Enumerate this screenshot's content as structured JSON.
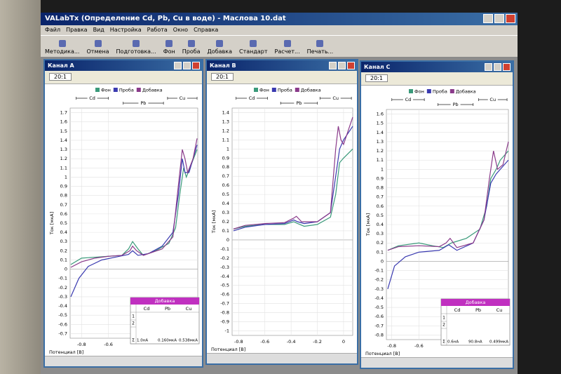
{
  "window": {
    "title": "VALabTx (Определение Cd, Pb, Cu в воде) - Маслова 10.dat"
  },
  "menu": [
    "Файл",
    "Правка",
    "Вид",
    "Настройка",
    "Работа",
    "Окно",
    "Справка"
  ],
  "toolbar": [
    "Методика...",
    "Отмена",
    "Подготовка...",
    "Фон",
    "Проба",
    "Добавка",
    "Стандарт",
    "Расчет...",
    "Печать..."
  ],
  "panels": [
    {
      "title": "Канал A",
      "zoom": "20:1",
      "table": {
        "title": "Добавка",
        "columns": [
          "Cd",
          "Pb",
          "Cu"
        ],
        "rows": [
          "1",
          "2",
          "Σ"
        ],
        "sum": [
          "1.0нА",
          "0.160мкА",
          "0.538мкА"
        ]
      }
    },
    {
      "title": "Канал B",
      "zoom": "20:1"
    },
    {
      "title": "Канал C",
      "zoom": "20:1",
      "table": {
        "title": "Добавка",
        "columns": [
          "Cd",
          "Pb",
          "Cu"
        ],
        "rows": [
          "1",
          "2",
          "Σ"
        ],
        "sum": [
          "0.6нА",
          "90.8нА",
          "0.499мкА"
        ]
      }
    }
  ],
  "chart_data": [
    {
      "type": "line",
      "x_label": "Потенциал [В]",
      "y_label": "Ток [мкА]",
      "grid": true,
      "xlim": [
        -0.885,
        0.065
      ],
      "xticks": [
        -0.8,
        -0.6
      ],
      "ylim": [
        -0.75,
        1.75
      ],
      "yticks": [
        -0.7,
        -0.6,
        -0.5,
        -0.4,
        -0.3,
        -0.2,
        -0.1,
        0,
        0.1,
        0.2,
        0.3,
        0.4,
        0.5,
        0.6,
        0.7,
        0.8,
        0.9,
        1,
        1.1,
        1.2,
        1.3,
        1.4,
        1.5,
        1.6,
        1.7
      ],
      "regions": [
        {
          "label": "Cd",
          "from": -0.84,
          "to": -0.6
        },
        {
          "label": "Pb",
          "from": -0.49,
          "to": -0.19
        },
        {
          "label": "Cu",
          "from": -0.16,
          "to": 0.06
        }
      ],
      "series": [
        {
          "name": "Фон",
          "color": "#3a9a7a",
          "x": [
            -0.88,
            -0.8,
            -0.7,
            -0.6,
            -0.5,
            -0.45,
            -0.42,
            -0.38,
            -0.34,
            -0.25,
            -0.15,
            -0.1,
            -0.07,
            -0.04,
            -0.02,
            0.02,
            0.06
          ],
          "values": [
            0.05,
            0.12,
            0.13,
            0.14,
            0.15,
            0.22,
            0.3,
            0.22,
            0.15,
            0.2,
            0.28,
            0.45,
            0.8,
            1.1,
            1.0,
            1.15,
            1.3
          ]
        },
        {
          "name": "Проба",
          "color": "#3a3ab0",
          "x": [
            -0.88,
            -0.82,
            -0.75,
            -0.65,
            -0.55,
            -0.45,
            -0.42,
            -0.38,
            -0.3,
            -0.2,
            -0.12,
            -0.08,
            -0.05,
            -0.03,
            0.0,
            0.06
          ],
          "values": [
            -0.3,
            -0.1,
            0.03,
            0.1,
            0.13,
            0.16,
            0.2,
            0.15,
            0.17,
            0.25,
            0.4,
            0.8,
            1.2,
            1.05,
            1.05,
            1.35
          ]
        },
        {
          "name": "Добавка",
          "color": "#8a3a8a",
          "x": [
            -0.88,
            -0.8,
            -0.7,
            -0.6,
            -0.5,
            -0.44,
            -0.42,
            -0.39,
            -0.34,
            -0.2,
            -0.12,
            -0.08,
            -0.05,
            -0.03,
            -0.01,
            0.03,
            0.06
          ],
          "values": [
            0.02,
            0.08,
            0.12,
            0.14,
            0.15,
            0.2,
            0.25,
            0.2,
            0.15,
            0.22,
            0.35,
            0.9,
            1.3,
            1.2,
            1.05,
            1.2,
            1.42
          ]
        }
      ]
    },
    {
      "type": "line",
      "x_label": "Потенциал [В]",
      "y_label": "Ток [мкА]",
      "grid": true,
      "xlim": [
        -0.85,
        0.07
      ],
      "xticks": [
        -0.8,
        -0.6,
        -0.4,
        -0.2,
        0
      ],
      "ylim": [
        -1.05,
        1.45
      ],
      "yticks": [
        -1,
        -0.9,
        -0.8,
        -0.7,
        -0.6,
        -0.5,
        -0.4,
        -0.3,
        -0.2,
        -0.1,
        0,
        0.1,
        0.2,
        0.3,
        0.4,
        0.5,
        0.6,
        0.7,
        0.8,
        0.9,
        1,
        1.1,
        1.2,
        1.3,
        1.4
      ],
      "regions": [
        {
          "label": "Cd",
          "from": -0.82,
          "to": -0.58
        },
        {
          "label": "Pb",
          "from": -0.48,
          "to": -0.2
        },
        {
          "label": "Cu",
          "from": -0.18,
          "to": 0.06
        }
      ],
      "series": [
        {
          "name": "Фон",
          "color": "#3a9a7a",
          "x": [
            -0.84,
            -0.75,
            -0.6,
            -0.45,
            -0.38,
            -0.35,
            -0.3,
            -0.2,
            -0.1,
            -0.06,
            -0.03,
            0.0,
            0.07
          ],
          "values": [
            0.12,
            0.15,
            0.17,
            0.17,
            0.2,
            0.18,
            0.15,
            0.17,
            0.25,
            0.5,
            0.85,
            0.9,
            1.0
          ]
        },
        {
          "name": "Проба",
          "color": "#3a3ab0",
          "x": [
            -0.84,
            -0.75,
            -0.6,
            -0.45,
            -0.38,
            -0.35,
            -0.3,
            -0.2,
            -0.1,
            -0.06,
            -0.03,
            0.0,
            0.07
          ],
          "values": [
            0.1,
            0.14,
            0.17,
            0.18,
            0.22,
            0.2,
            0.18,
            0.2,
            0.3,
            0.7,
            1.0,
            1.1,
            1.25
          ]
        },
        {
          "name": "Добавка",
          "color": "#8a3a8a",
          "x": [
            -0.84,
            -0.75,
            -0.6,
            -0.45,
            -0.38,
            -0.36,
            -0.32,
            -0.2,
            -0.1,
            -0.06,
            -0.04,
            -0.02,
            0.0,
            0.07
          ],
          "values": [
            0.12,
            0.16,
            0.18,
            0.19,
            0.24,
            0.26,
            0.2,
            0.2,
            0.3,
            1.0,
            1.25,
            1.1,
            1.05,
            1.35
          ]
        }
      ]
    },
    {
      "type": "line",
      "x_label": "Потенциал [В]",
      "y_label": "Ток [мкА]",
      "grid": true,
      "xlim": [
        -0.84,
        0.06
      ],
      "xticks": [
        -0.8,
        -0.6
      ],
      "ylim": [
        -0.85,
        1.65
      ],
      "yticks": [
        -0.8,
        -0.7,
        -0.6,
        -0.5,
        -0.4,
        -0.3,
        -0.2,
        -0.1,
        0,
        0.1,
        0.2,
        0.3,
        0.4,
        0.5,
        0.6,
        0.7,
        0.8,
        0.9,
        1,
        1.1,
        1.2,
        1.3,
        1.4,
        1.5,
        1.6
      ],
      "regions": [
        {
          "label": "Cd",
          "from": -0.8,
          "to": -0.56
        },
        {
          "label": "Pb",
          "from": -0.46,
          "to": -0.2
        },
        {
          "label": "Cu",
          "from": -0.16,
          "to": 0.05
        }
      ],
      "series": [
        {
          "name": "Фон",
          "color": "#3a9a7a",
          "x": [
            -0.83,
            -0.75,
            -0.6,
            -0.5,
            -0.42,
            -0.36,
            -0.25,
            -0.15,
            -0.1,
            -0.07,
            -0.03,
            0.0,
            0.06
          ],
          "values": [
            0.12,
            0.17,
            0.2,
            0.17,
            0.15,
            0.2,
            0.25,
            0.35,
            0.6,
            0.9,
            1.0,
            1.1,
            1.2
          ]
        },
        {
          "name": "Проба",
          "color": "#3a3ab0",
          "x": [
            -0.83,
            -0.78,
            -0.7,
            -0.6,
            -0.45,
            -0.38,
            -0.32,
            -0.2,
            -0.12,
            -0.07,
            -0.03,
            0.06
          ],
          "values": [
            -0.3,
            -0.05,
            0.05,
            0.1,
            0.12,
            0.18,
            0.12,
            0.2,
            0.45,
            0.85,
            0.95,
            1.1
          ]
        },
        {
          "name": "Добавка",
          "color": "#8a3a8a",
          "x": [
            -0.83,
            -0.75,
            -0.6,
            -0.45,
            -0.4,
            -0.37,
            -0.32,
            -0.2,
            -0.12,
            -0.08,
            -0.05,
            -0.02,
            0.02,
            0.06
          ],
          "values": [
            0.12,
            0.16,
            0.17,
            0.16,
            0.2,
            0.25,
            0.15,
            0.2,
            0.45,
            0.9,
            1.2,
            1.0,
            1.05,
            1.3
          ]
        }
      ]
    }
  ]
}
